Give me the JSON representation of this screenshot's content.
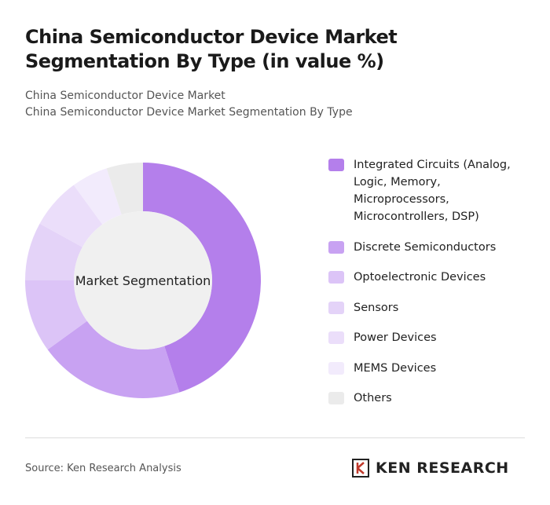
{
  "chart_data": {
    "type": "donut",
    "title": "China Semiconductor Device Market Segmentation By Type (in value %)",
    "subtitle": [
      "China Semiconductor Device Market",
      "China Semiconductor Device Market Segmentation By Type"
    ],
    "center_label": "Market Segmentation",
    "categories": [
      "Integrated Circuits (Analog, Logic, Memory, Microprocessors, Microcontrollers, DSP)",
      "Discrete Semiconductors",
      "Optoelectronic Devices",
      "Sensors",
      "Power Devices",
      "MEMS Devices",
      "Others"
    ],
    "values": [
      45,
      20,
      10,
      8,
      7,
      5,
      5
    ],
    "colors": [
      "#b47feb",
      "#c8a2f2",
      "#dcc4f7",
      "#e4d3f8",
      "#ebdefa",
      "#f2ebfc",
      "#ebebeb"
    ]
  },
  "footer": {
    "source": "Source: Ken Research Analysis",
    "logo": "KEN RESEARCH"
  }
}
